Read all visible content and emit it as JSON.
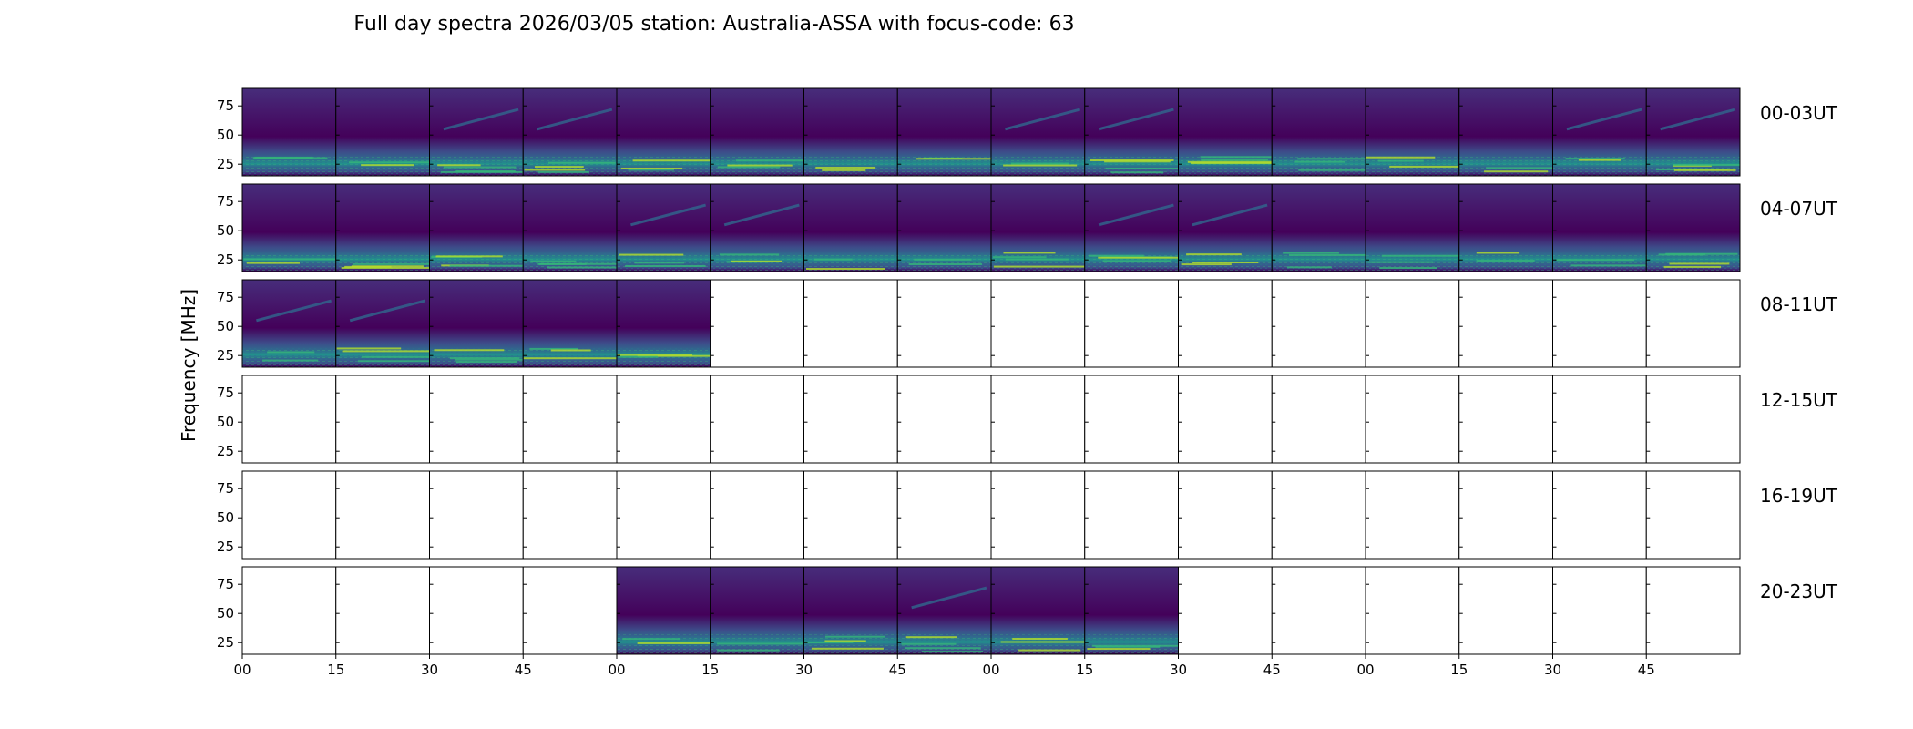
{
  "chart_data": {
    "type": "heatmap",
    "title": "Full day spectra 2026/03/05 station: Australia-ASSA with focus-code: 63",
    "ylabel": "Frequency [MHz]",
    "xlabel": "",
    "y_ticks": [
      "75",
      "50",
      "25"
    ],
    "y_tick_values": [
      75,
      50,
      25
    ],
    "ylim": [
      15,
      90
    ],
    "x_ticks": [
      "00",
      "15",
      "30",
      "45",
      "00",
      "15",
      "30",
      "45",
      "00",
      "15",
      "30",
      "45",
      "00",
      "15",
      "30",
      "45"
    ],
    "row_labels": [
      "00-03UT",
      "04-07UT",
      "08-11UT",
      "12-15UT",
      "16-19UT",
      "20-23UT"
    ],
    "panels_per_row": 16,
    "panel_minutes": 15,
    "colormap": "viridis",
    "data_available": [
      [
        1,
        1,
        1,
        1,
        1,
        1,
        1,
        1,
        1,
        1,
        1,
        1,
        1,
        1,
        1,
        1
      ],
      [
        1,
        1,
        1,
        1,
        1,
        1,
        1,
        1,
        1,
        1,
        1,
        1,
        1,
        1,
        1,
        1
      ],
      [
        1,
        1,
        1,
        1,
        1,
        0,
        0,
        0,
        0,
        0,
        0,
        0,
        0,
        0,
        0,
        0
      ],
      [
        0,
        0,
        0,
        0,
        0,
        0,
        0,
        0,
        0,
        0,
        0,
        0,
        0,
        0,
        0,
        0
      ],
      [
        0,
        0,
        0,
        0,
        0,
        0,
        0,
        0,
        0,
        0,
        0,
        0,
        0,
        0,
        0,
        0
      ],
      [
        0,
        0,
        0,
        0,
        1,
        1,
        1,
        1,
        1,
        1,
        0,
        0,
        0,
        0,
        0,
        0
      ]
    ],
    "burst_panels": [
      [
        0,
        2
      ],
      [
        0,
        3
      ],
      [
        0,
        8
      ],
      [
        0,
        9
      ],
      [
        0,
        14
      ],
      [
        0,
        15
      ],
      [
        1,
        4
      ],
      [
        1,
        5
      ],
      [
        1,
        9
      ],
      [
        1,
        10
      ],
      [
        2,
        0
      ],
      [
        2,
        1
      ],
      [
        5,
        7
      ]
    ],
    "colors": {
      "background_low": "#44015a",
      "background_mid": "#472d7b",
      "band_mid": "#31688e",
      "band_high": "#35b779",
      "band_peak": "#b5de2b",
      "empty_panel": "#ffffff",
      "frame": "#000000"
    }
  }
}
